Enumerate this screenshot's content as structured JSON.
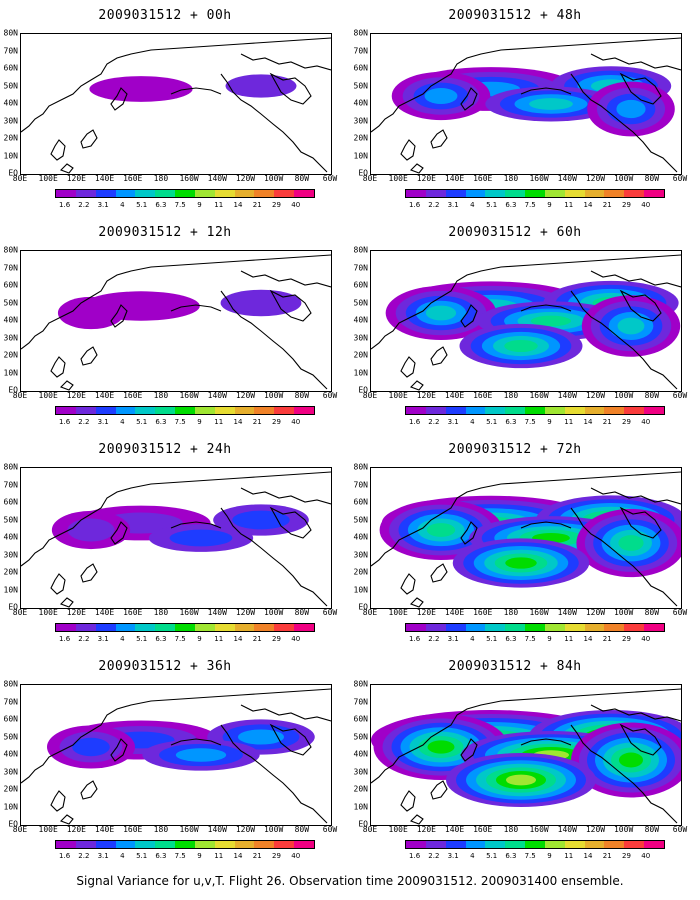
{
  "caption": "Signal Variance for u,v,T. Flight 26. Observation time 2009031512. 2009031400 ensemble.",
  "lat_labels": [
    "80N",
    "70N",
    "60N",
    "50N",
    "40N",
    "30N",
    "20N",
    "10N",
    "EQ"
  ],
  "lon_labels": [
    "80E",
    "100E",
    "120E",
    "140E",
    "160E",
    "180",
    "160W",
    "140W",
    "120W",
    "100W",
    "80W",
    "60W"
  ],
  "colorbar": {
    "labels": [
      "1.6",
      "2.2",
      "3.1",
      "4",
      "5.1",
      "6.3",
      "7.5",
      "9",
      "11",
      "14",
      "21",
      "29",
      "40"
    ],
    "colors": [
      "#a000c8",
      "#6e28dc",
      "#1e3cff",
      "#0096ff",
      "#00c8c8",
      "#00dc8c",
      "#00dc00",
      "#a0e632",
      "#e6dc32",
      "#e6af2d",
      "#f08228",
      "#fa3c3c",
      "#f00082"
    ]
  },
  "panels": [
    {
      "title": "2009031512 + 00h",
      "level": 0.05
    },
    {
      "title": "2009031512 + 48h",
      "level": 0.55
    },
    {
      "title": "2009031512 + 12h",
      "level": 0.15
    },
    {
      "title": "2009031512 + 60h",
      "level": 0.7
    },
    {
      "title": "2009031512 + 24h",
      "level": 0.3
    },
    {
      "title": "2009031512 + 72h",
      "level": 0.85
    },
    {
      "title": "2009031512 + 36h",
      "level": 0.42
    },
    {
      "title": "2009031512 + 84h",
      "level": 1.0
    }
  ]
}
